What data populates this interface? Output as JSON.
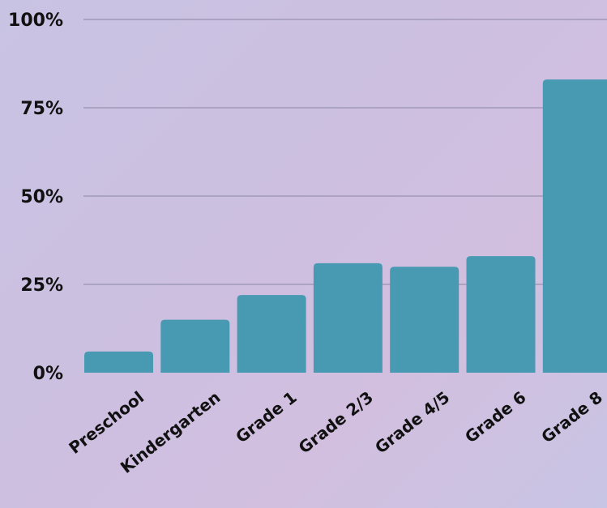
{
  "chart_data": {
    "type": "bar",
    "title": "",
    "xlabel": "",
    "ylabel": "",
    "categories": [
      "Preschool",
      "Kindergarten",
      "Grade 1",
      "Grade 2/3",
      "Grade 4/5",
      "Grade 6",
      "Grade 8"
    ],
    "values": [
      6,
      15,
      22,
      31,
      30,
      33,
      83
    ],
    "ylim": [
      0,
      100
    ],
    "yticks": [
      0,
      25,
      50,
      75,
      100
    ],
    "ytick_labels": [
      "0%",
      "25%",
      "50%",
      "75%",
      "100%"
    ],
    "grid": true,
    "bar_color": "#4899b2",
    "gridline_color": "#8a86a3"
  }
}
